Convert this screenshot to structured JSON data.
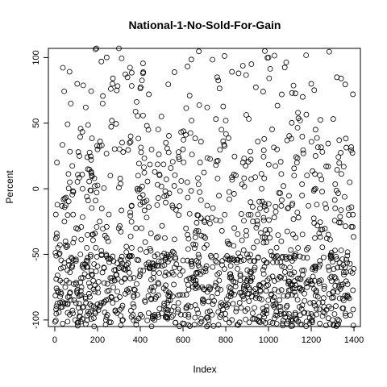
{
  "chart_data": {
    "type": "scatter",
    "title": "National-1-No-Sold-For-Gain",
    "xlabel": "Index",
    "ylabel": "Percent",
    "xlim": [
      -30,
      1430
    ],
    "ylim": [
      -105,
      107
    ],
    "xticks": [
      0,
      200,
      400,
      600,
      800,
      1000,
      1200,
      1400
    ],
    "yticks": [
      -100,
      -50,
      0,
      50,
      100
    ],
    "grid": false,
    "point_style": "open-circle",
    "n_points": 1400,
    "series": [
      {
        "values": [
          [
            5,
            -38
          ],
          [
            10,
            20
          ],
          [
            15,
            -45
          ],
          [
            20,
            -50
          ],
          [
            25,
            -70
          ],
          [
            30,
            -80
          ],
          [
            35,
            -90
          ],
          [
            40,
            -60
          ],
          [
            45,
            -25
          ],
          [
            50,
            -40
          ],
          [
            55,
            -70
          ],
          [
            60,
            -20
          ],
          [
            65,
            -55
          ],
          [
            70,
            5
          ],
          [
            75,
            65
          ],
          [
            80,
            -60
          ],
          [
            85,
            -95
          ],
          [
            90,
            -85
          ],
          [
            95,
            -100
          ],
          [
            100,
            -30
          ],
          [
            105,
            80
          ],
          [
            110,
            28
          ],
          [
            115,
            25
          ],
          [
            120,
            -50
          ],
          [
            125,
            -75
          ],
          [
            130,
            0
          ],
          [
            135,
            -90
          ],
          [
            140,
            -65
          ],
          [
            145,
            62
          ],
          [
            150,
            -45
          ],
          [
            155,
            15
          ],
          [
            160,
            -80
          ],
          [
            165,
            -88
          ],
          [
            170,
            22
          ],
          [
            175,
            -35
          ],
          [
            180,
            -70
          ],
          [
            185,
            8
          ],
          [
            190,
            -95
          ],
          [
            195,
            107
          ],
          [
            200,
            30
          ],
          [
            210,
            -25
          ],
          [
            220,
            -15
          ],
          [
            230,
            -60
          ],
          [
            240,
            -85
          ],
          [
            250,
            -40
          ],
          [
            260,
            10
          ],
          [
            270,
            80
          ],
          [
            280,
            -70
          ],
          [
            290,
            75
          ],
          [
            300,
            107
          ],
          [
            310,
            -55
          ],
          [
            320,
            28
          ],
          [
            330,
            -80
          ],
          [
            340,
            85
          ],
          [
            350,
            35
          ],
          [
            360,
            -45
          ],
          [
            370,
            -90
          ],
          [
            380,
            -30
          ],
          [
            390,
            10
          ],
          [
            400,
            -65
          ],
          [
            420,
            -10
          ],
          [
            440,
            72
          ],
          [
            460,
            -78
          ],
          [
            480,
            -50
          ],
          [
            500,
            -95
          ],
          [
            520,
            35
          ],
          [
            540,
            -85
          ],
          [
            560,
            -60
          ],
          [
            580,
            -20
          ],
          [
            600,
            30
          ],
          [
            620,
            5
          ],
          [
            640,
            52
          ],
          [
            660,
            -70
          ],
          [
            680,
            20
          ],
          [
            700,
            -45
          ],
          [
            720,
            -100
          ],
          [
            740,
            -88
          ],
          [
            760,
            85
          ],
          [
            780,
            45
          ],
          [
            800,
            52
          ],
          [
            820,
            -65
          ],
          [
            840,
            -30
          ],
          [
            860,
            88
          ],
          [
            880,
            20
          ],
          [
            900,
            -50
          ],
          [
            920,
            95
          ],
          [
            940,
            -80
          ],
          [
            960,
            -15
          ],
          [
            980,
            38
          ],
          [
            1000,
            100
          ],
          [
            1020,
            -85
          ],
          [
            1040,
            30
          ],
          [
            1060,
            -40
          ],
          [
            1080,
            -95
          ],
          [
            1100,
            -60
          ],
          [
            1120,
            10
          ],
          [
            1140,
            -22
          ],
          [
            1160,
            70
          ],
          [
            1180,
            -75
          ],
          [
            1200,
            80
          ],
          [
            1220,
            25
          ],
          [
            1240,
            -55
          ],
          [
            1260,
            -90
          ],
          [
            1280,
            -35
          ],
          [
            1300,
            -100
          ],
          [
            1320,
            85
          ],
          [
            1340,
            -60
          ],
          [
            1360,
            -95
          ],
          [
            1380,
            5
          ],
          [
            1395,
            72
          ]
        ]
      }
    ]
  }
}
